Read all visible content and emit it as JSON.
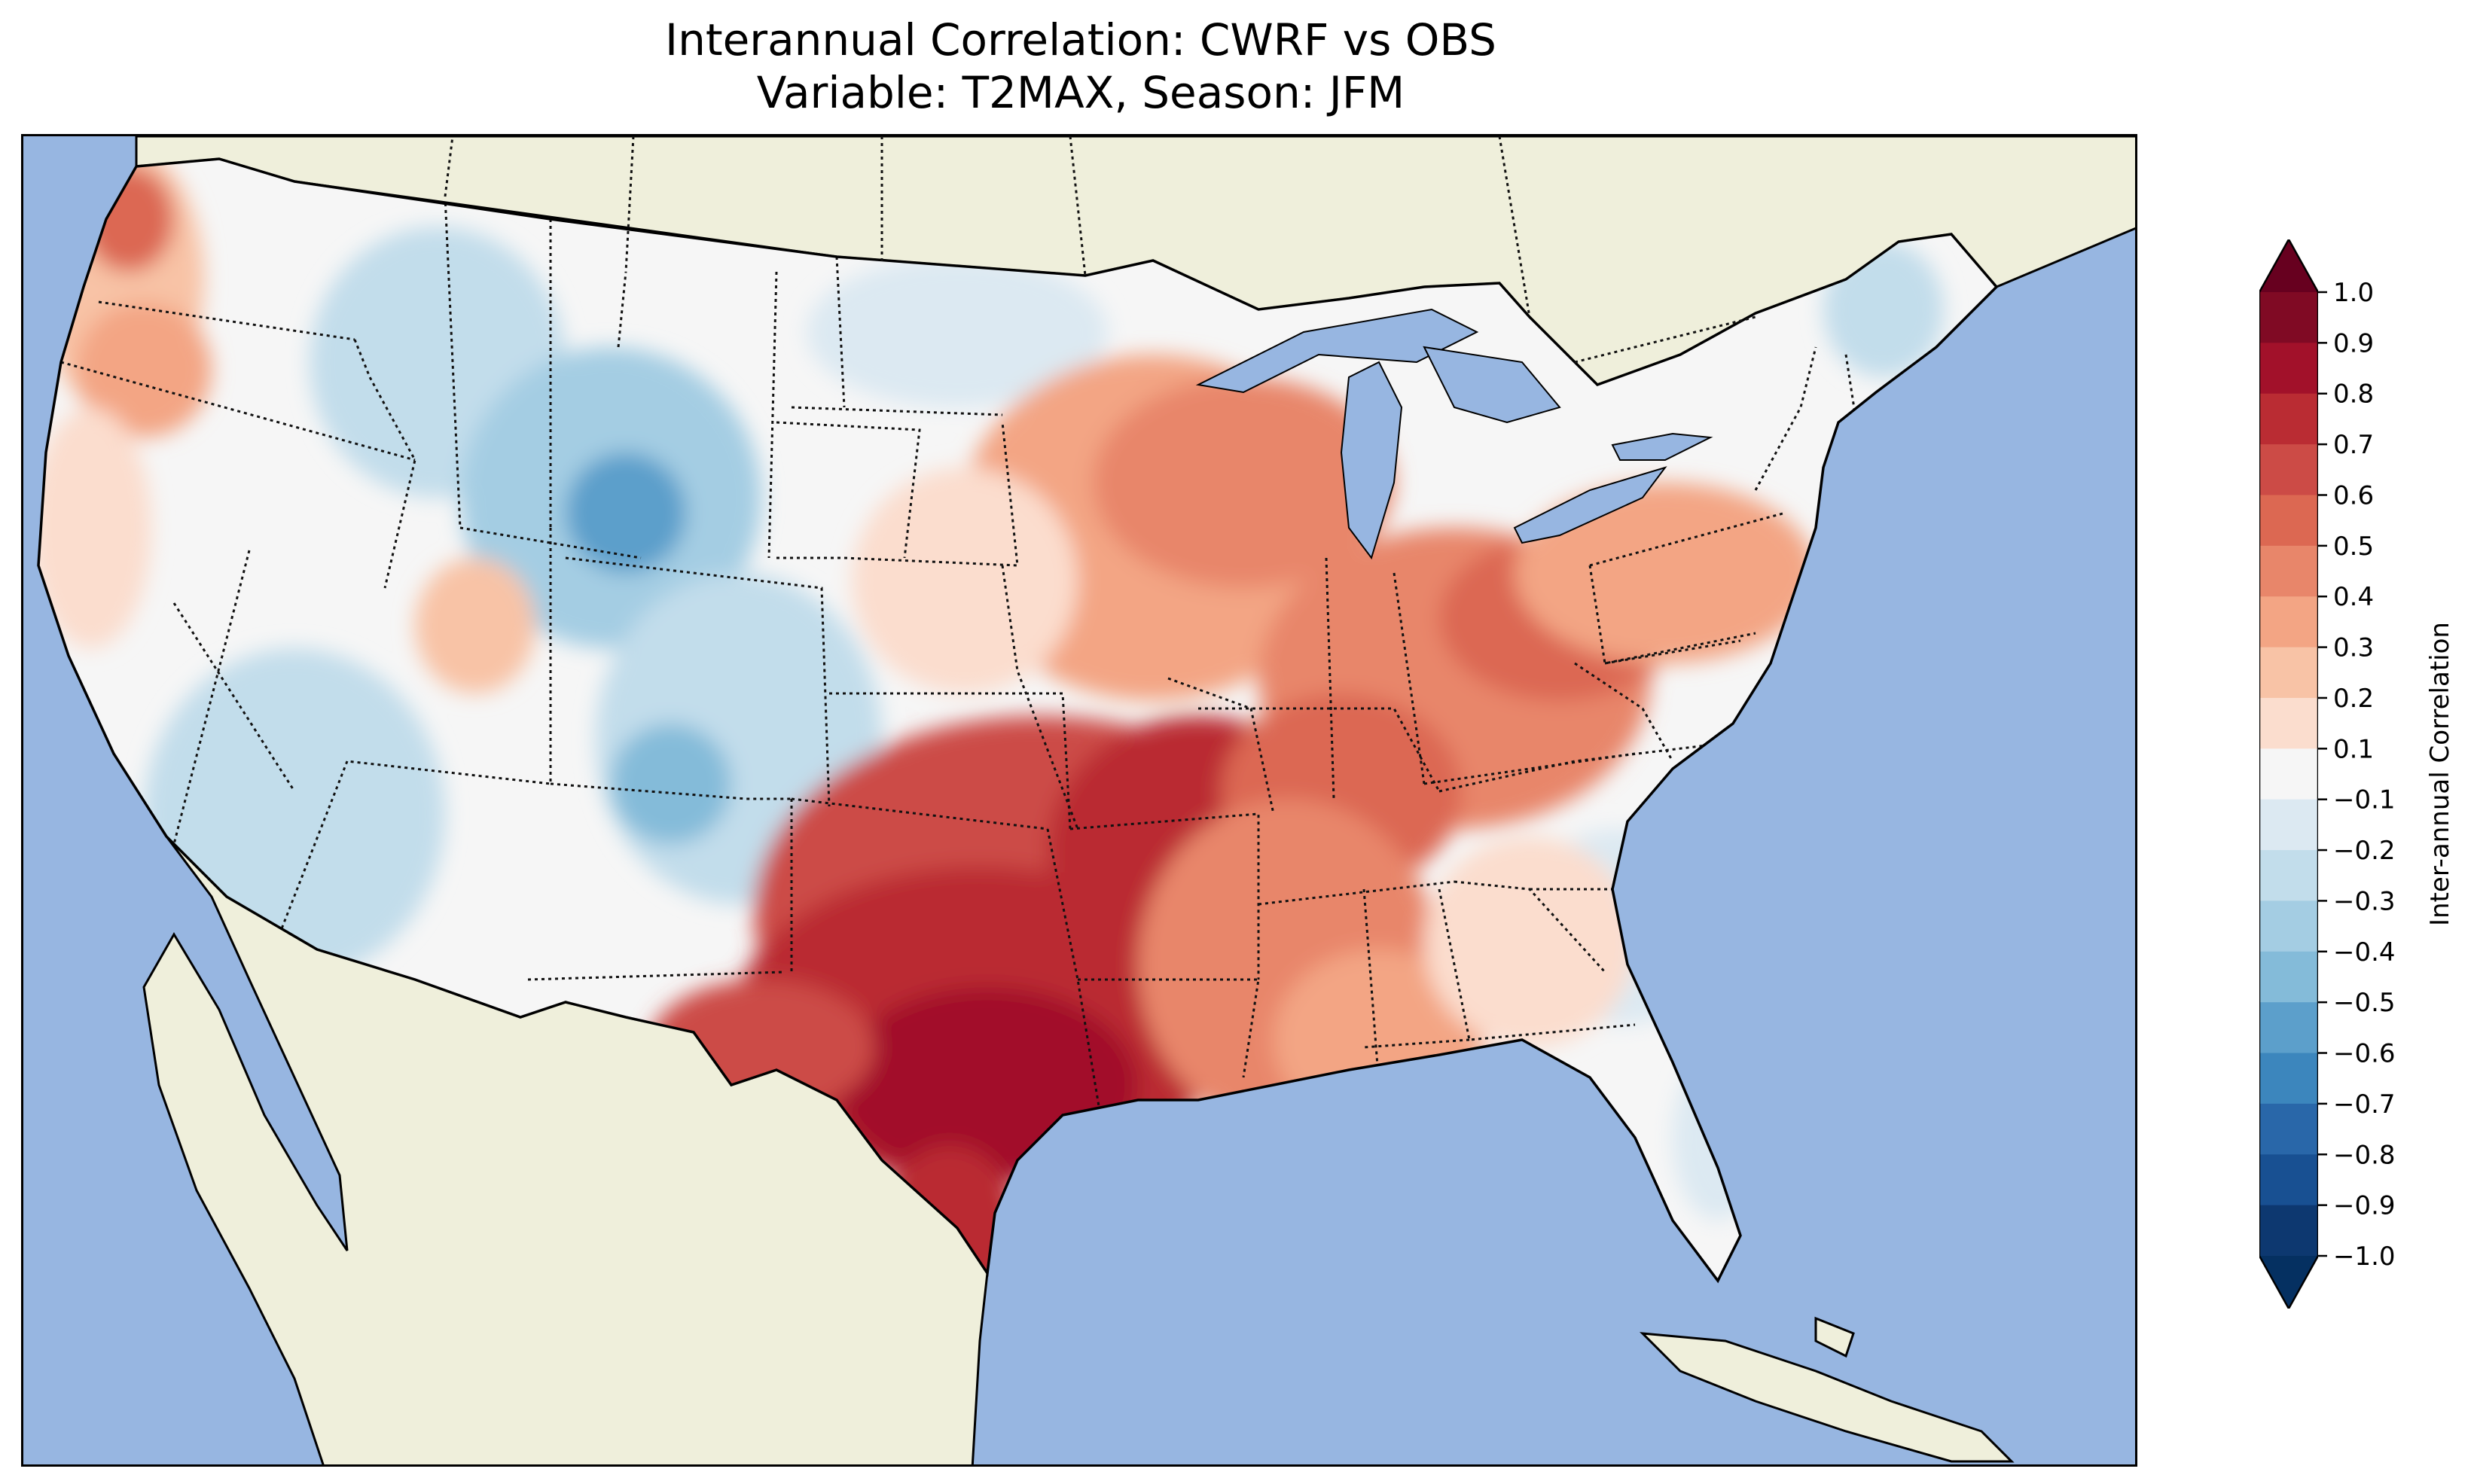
{
  "title": {
    "line1": "Interannual Correlation: CWRF vs OBS",
    "line2": "Variable: T2MAX, Season: JFM"
  },
  "colorbar": {
    "label": "Inter-annual Correlation",
    "ticks": [
      "1.0",
      "0.9",
      "0.8",
      "0.7",
      "0.6",
      "0.5",
      "0.4",
      "0.3",
      "0.2",
      "0.1",
      "−0.1",
      "−0.2",
      "−0.3",
      "−0.4",
      "−0.5",
      "−0.6",
      "−0.7",
      "−0.8",
      "−0.9",
      "−1.0"
    ],
    "colors_top_to_bottom": [
      "#800a24",
      "#a2112a",
      "#ba2c33",
      "#cc4b46",
      "#dc6852",
      "#e8866a",
      "#f3a584",
      "#f8c3a6",
      "#fbddce",
      "#f6f6f6",
      "#dce9f2",
      "#c2ddeb",
      "#a4cde3",
      "#84bbd9",
      "#5c9fcb",
      "#3c86bd",
      "#2967a9",
      "#185092",
      "#0d3870"
    ],
    "extend_top": "#67001f",
    "extend_bottom": "#053061"
  },
  "map": {
    "ocean_color": "#97b6e1",
    "land_color": "#efefdb",
    "lake_color": "#97b6e1",
    "region": "Contiguous United States"
  }
}
